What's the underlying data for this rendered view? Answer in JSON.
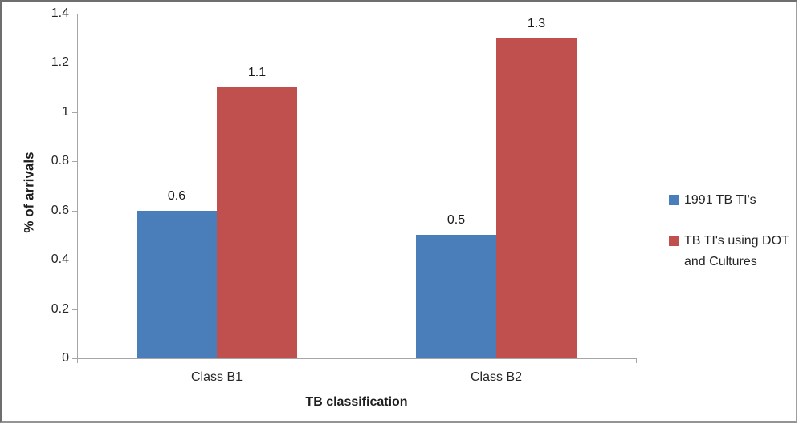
{
  "chart_data": {
    "type": "bar",
    "title": "",
    "categories": [
      "Class B1",
      "Class B2"
    ],
    "series": [
      {
        "name": "1991 TB TI's",
        "color": "#4A7EBB",
        "values": [
          0.6,
          0.5
        ]
      },
      {
        "name": "TB TI's using DOT and Cultures",
        "color": "#C0504D",
        "values": [
          1.1,
          1.3
        ]
      }
    ],
    "data_labels": [
      [
        "0.6",
        "0.5"
      ],
      [
        "1.1",
        "1.3"
      ]
    ],
    "xlabel": "TB classification",
    "ylabel": "% of arrivals",
    "ylim": [
      0,
      1.4
    ],
    "ytick_labels": [
      "0",
      "0.2",
      "0.4",
      "0.6",
      "0.8",
      "1",
      "1.2",
      "1.4"
    ],
    "grid": false,
    "legend_position": "right",
    "axis_color": "#a6a6a6"
  },
  "axes": {
    "x_title": "TB classification",
    "y_title": "% of arrivals"
  },
  "legend": {
    "items": [
      {
        "lines": [
          "1991 TB TI's"
        ],
        "color": "#4A7EBB"
      },
      {
        "lines": [
          "TB TI's using DOT",
          "and Cultures"
        ],
        "color": "#C0504D"
      }
    ]
  }
}
